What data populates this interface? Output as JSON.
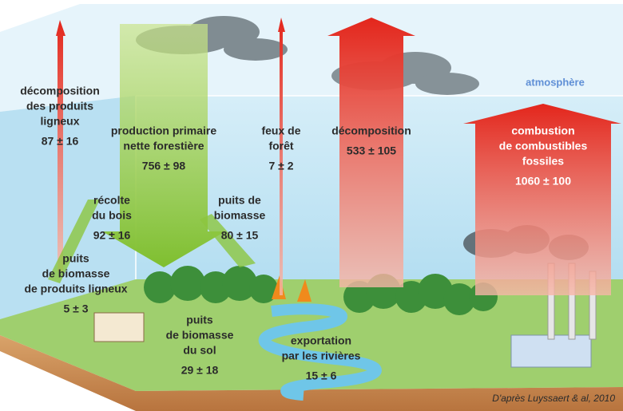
{
  "atmosphere_label": "atmosphère",
  "flows": [
    {
      "label": [
        "décomposition",
        "des produits",
        "ligneux"
      ],
      "value": "87 ± 16"
    },
    {
      "label": [
        "production primaire",
        "nette forestière"
      ],
      "value": "756 ± 98"
    },
    {
      "label": [
        "feux de",
        "forêt"
      ],
      "value": "7 ± 2"
    },
    {
      "label": [
        "décomposition"
      ],
      "value": "533 ± 105"
    },
    {
      "label": [
        "combustion",
        "de combustibles",
        "fossiles"
      ],
      "value": "1060 ± 100"
    },
    {
      "label": [
        "récolte",
        "du bois"
      ],
      "value": "92 ± 16"
    },
    {
      "label": [
        "puits de",
        "biomasse"
      ],
      "value": "80 ± 15"
    },
    {
      "label": [
        "puits",
        "de biomasse",
        "de produits ligneux"
      ],
      "value": "5 ± 3"
    },
    {
      "label": [
        "puits",
        "de biomasse",
        "du sol"
      ],
      "value": "29 ± 18"
    },
    {
      "label": [
        "exportation",
        "par les rivières"
      ],
      "value": "15 ± 6"
    }
  ],
  "credit": "D'après Luyssaert & al, 2010"
}
